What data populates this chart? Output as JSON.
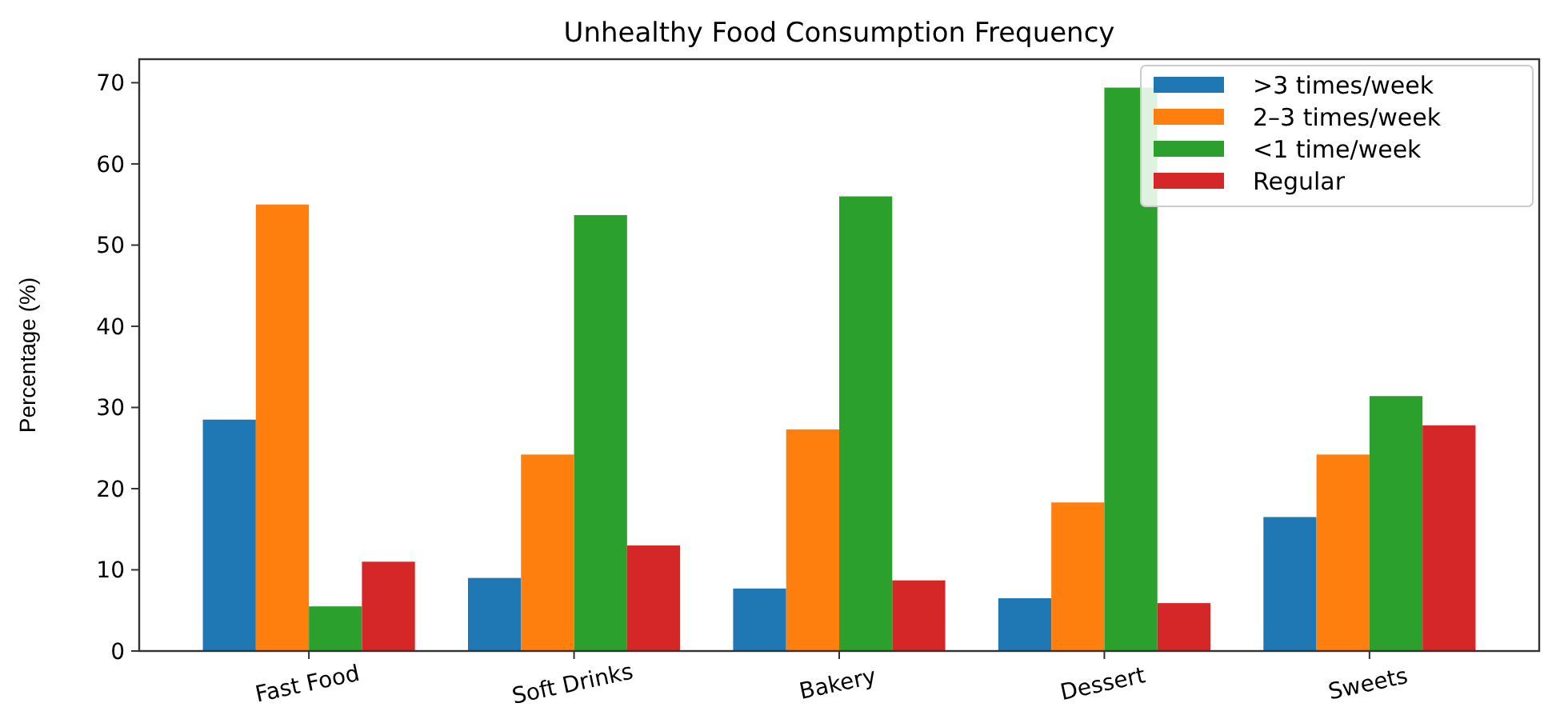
{
  "chart_data": {
    "type": "bar",
    "title": "Unhealthy Food Consumption Frequency",
    "ylabel": "Percentage (%)",
    "categories": [
      "Fast Food",
      "Soft Drinks",
      "Bakery",
      "Dessert",
      "Sweets"
    ],
    "series": [
      {
        "name": ">3 times/week",
        "color": "#1f77b4",
        "values": [
          28.5,
          9.0,
          7.7,
          6.5,
          16.5
        ]
      },
      {
        "name": "2–3 times/week",
        "color": "#ff7f0e",
        "values": [
          55.0,
          24.2,
          27.3,
          18.3,
          24.2
        ]
      },
      {
        "name": "<1 time/week",
        "color": "#2ca02c",
        "values": [
          5.5,
          53.7,
          56.0,
          69.4,
          31.4
        ]
      },
      {
        "name": "Regular",
        "color": "#d62728",
        "values": [
          11.0,
          13.0,
          8.7,
          5.9,
          27.8
        ]
      }
    ],
    "ylim": [
      0,
      72.9
    ],
    "yticks": [
      0,
      10,
      20,
      30,
      40,
      50,
      60,
      70
    ],
    "legend": "top right"
  }
}
